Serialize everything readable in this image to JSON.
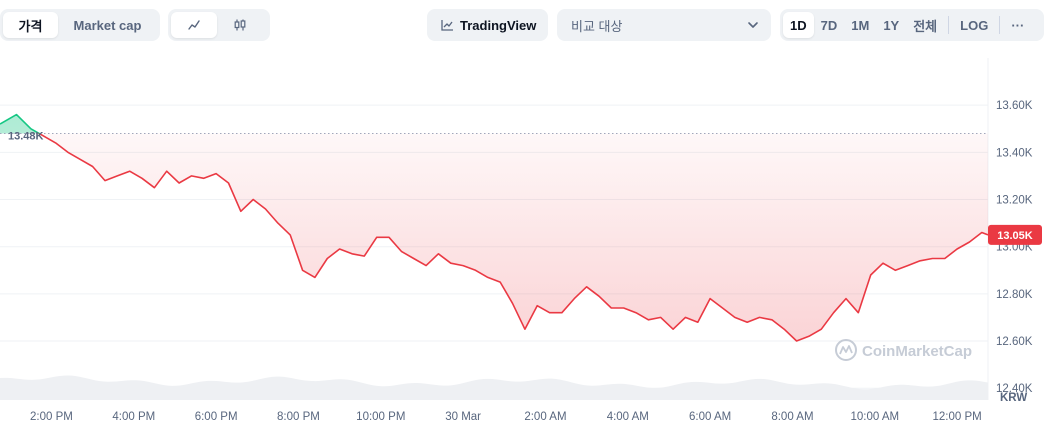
{
  "toolbar": {
    "view_tabs": [
      "가격",
      "Market cap"
    ],
    "chart_type_icons": [
      "line-chart-icon",
      "candlestick-icon"
    ],
    "tradingview_label": "TradingView",
    "compare_placeholder": "비교 대상",
    "ranges": [
      "1D",
      "7D",
      "1M",
      "1Y",
      "전체"
    ],
    "log_label": "LOG",
    "more_label": "···"
  },
  "watermark": "CoinMarketCap",
  "colors": {
    "up": "#16c784",
    "down": "#ea3943",
    "grid": "#eff2f5",
    "text": "#58667e"
  },
  "chart_data": {
    "type": "area",
    "currency": "KRW",
    "y_ticks": [
      "13.60K",
      "13.40K",
      "13.20K",
      "13.00K",
      "12.80K",
      "12.60K",
      "12.40K"
    ],
    "y_tick_values": [
      13600,
      13400,
      13200,
      13000,
      12800,
      12600,
      12400
    ],
    "ylim": [
      12350,
      13800
    ],
    "x_ticks": [
      "2:00 PM",
      "4:00 PM",
      "6:00 PM",
      "8:00 PM",
      "10:00 PM",
      "30 Mar",
      "2:00 AM",
      "4:00 AM",
      "6:00 AM",
      "8:00 AM",
      "10:00 AM",
      "12:00 PM"
    ],
    "x_tick_hours": [
      14,
      16,
      18,
      20,
      22,
      24,
      26,
      28,
      30,
      32,
      34,
      36
    ],
    "x_range_hours": [
      12.75,
      36.75
    ],
    "open_price": 13480,
    "open_label": "13.48K",
    "last_price": 13050,
    "last_label": "13.05K",
    "series": [
      {
        "hours": [
          12.75,
          13.15,
          13.5,
          13.8,
          14.1,
          14.4,
          14.7,
          15.0,
          15.3,
          15.6,
          15.9,
          16.2,
          16.5,
          16.8,
          17.1,
          17.4,
          17.7,
          18.0,
          18.3,
          18.6,
          18.9,
          19.2,
          19.5,
          19.8,
          20.1,
          20.4,
          20.7,
          21.0,
          21.3,
          21.6,
          21.9,
          22.2,
          22.5,
          22.8,
          23.1,
          23.4,
          23.7,
          24.0,
          24.3,
          24.6,
          24.9,
          25.2,
          25.5,
          25.8,
          26.1,
          26.4,
          26.7,
          27.0,
          27.3,
          27.6,
          27.9,
          28.2,
          28.5,
          28.8,
          29.1,
          29.4,
          29.7,
          30.0,
          30.3,
          30.6,
          30.9,
          31.2,
          31.5,
          31.8,
          32.1,
          32.4,
          32.7,
          33.0,
          33.3,
          33.6,
          33.9,
          34.2,
          34.5,
          34.8,
          35.1,
          35.4,
          35.7,
          36.0,
          36.3,
          36.6,
          36.75
        ],
        "values": [
          13520,
          13560,
          13500,
          13470,
          13440,
          13400,
          13370,
          13340,
          13280,
          13300,
          13320,
          13290,
          13250,
          13320,
          13270,
          13300,
          13290,
          13310,
          13270,
          13150,
          13200,
          13160,
          13100,
          13050,
          12900,
          12870,
          12950,
          12990,
          12970,
          12960,
          13040,
          13040,
          12980,
          12950,
          12920,
          12970,
          12930,
          12920,
          12900,
          12870,
          12850,
          12760,
          12650,
          12750,
          12720,
          12720,
          12780,
          12830,
          12790,
          12740,
          12740,
          12720,
          12690,
          12700,
          12650,
          12700,
          12680,
          12780,
          12740,
          12700,
          12680,
          12700,
          12690,
          12650,
          12600,
          12620,
          12650,
          12720,
          12780,
          12720,
          12880,
          12930,
          12900,
          12920,
          12940,
          12950,
          12950,
          12990,
          13020,
          13060,
          13050
        ]
      }
    ],
    "grid": true,
    "legend": "none"
  }
}
